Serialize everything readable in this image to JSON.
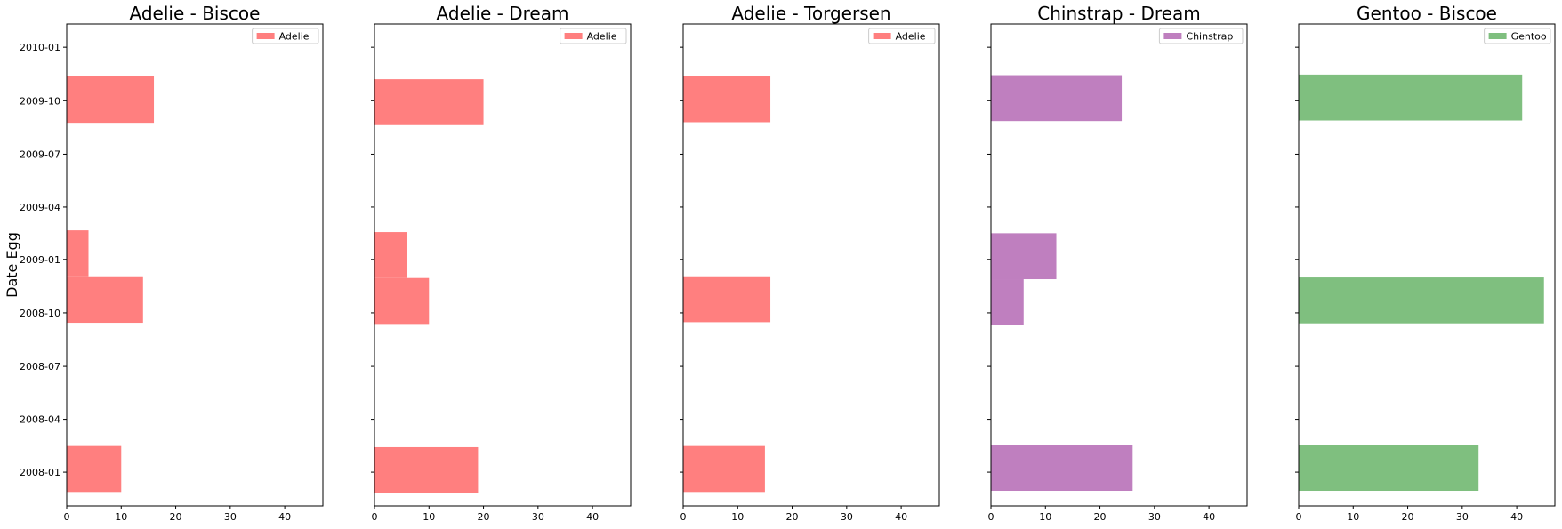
{
  "chart_data": [
    {
      "type": "bar",
      "orientation": "horizontal",
      "title": "Adelie - Biscoe",
      "xlabel": "",
      "ylabel": "Date Egg",
      "xlim": [
        0,
        47
      ],
      "xticks": [
        0,
        10,
        20,
        30,
        40
      ],
      "yrange": [
        "2007-11-04",
        "2010-02-10"
      ],
      "yticks": [
        "2008-01",
        "2008-04",
        "2008-07",
        "2008-10",
        "2009-01",
        "2009-04",
        "2009-07",
        "2009-10",
        "2010-01"
      ],
      "legend": {
        "location": "top-right",
        "entries": [
          "Adelie"
        ]
      },
      "color": "#ff7f7f",
      "bins": [
        {
          "start": "2007-11-28",
          "end": "2008-02-15",
          "value": 10
        },
        {
          "start": "2008-09-14",
          "end": "2008-12-03",
          "value": 14
        },
        {
          "start": "2008-12-03",
          "end": "2009-02-20",
          "value": 4
        },
        {
          "start": "2009-08-24",
          "end": "2009-11-12",
          "value": 16
        }
      ]
    },
    {
      "type": "bar",
      "orientation": "horizontal",
      "title": "Adelie - Dream",
      "xlabel": "",
      "ylabel": "",
      "xlim": [
        0,
        47
      ],
      "xticks": [
        0,
        10,
        20,
        30,
        40
      ],
      "yrange": [
        "2007-11-04",
        "2010-02-10"
      ],
      "yticks": [
        "2008-01",
        "2008-04",
        "2008-07",
        "2008-10",
        "2009-01",
        "2009-04",
        "2009-07",
        "2009-10",
        "2010-01"
      ],
      "legend": {
        "location": "top-right",
        "entries": [
          "Adelie"
        ]
      },
      "color": "#ff7f7f",
      "bins": [
        {
          "start": "2007-11-26",
          "end": "2008-02-13",
          "value": 19
        },
        {
          "start": "2008-09-12",
          "end": "2008-11-30",
          "value": 10
        },
        {
          "start": "2008-11-30",
          "end": "2009-02-17",
          "value": 6
        },
        {
          "start": "2009-08-20",
          "end": "2009-11-07",
          "value": 20
        }
      ]
    },
    {
      "type": "bar",
      "orientation": "horizontal",
      "title": "Adelie - Torgersen",
      "xlabel": "",
      "ylabel": "",
      "xlim": [
        0,
        47
      ],
      "xticks": [
        0,
        10,
        20,
        30,
        40
      ],
      "yrange": [
        "2007-11-04",
        "2010-02-10"
      ],
      "yticks": [
        "2008-01",
        "2008-04",
        "2008-07",
        "2008-10",
        "2009-01",
        "2009-04",
        "2009-07",
        "2009-10",
        "2010-01"
      ],
      "legend": {
        "location": "top-right",
        "entries": [
          "Adelie"
        ]
      },
      "color": "#ff7f7f",
      "bins": [
        {
          "start": "2007-11-28",
          "end": "2008-02-15",
          "value": 15
        },
        {
          "start": "2008-09-15",
          "end": "2008-12-03",
          "value": 16
        },
        {
          "start": "2009-08-25",
          "end": "2009-11-12",
          "value": 16
        }
      ]
    },
    {
      "type": "bar",
      "orientation": "horizontal",
      "title": "Chinstrap - Dream",
      "xlabel": "",
      "ylabel": "",
      "xlim": [
        0,
        47
      ],
      "xticks": [
        0,
        10,
        20,
        30,
        40
      ],
      "yrange": [
        "2007-11-04",
        "2010-02-10"
      ],
      "yticks": [
        "2008-01",
        "2008-04",
        "2008-07",
        "2008-10",
        "2009-01",
        "2009-04",
        "2009-07",
        "2009-10",
        "2010-01"
      ],
      "legend": {
        "location": "top-right",
        "entries": [
          "Chinstrap"
        ]
      },
      "color": "#bf7fbf",
      "bins": [
        {
          "start": "2007-11-30",
          "end": "2008-02-17",
          "value": 26
        },
        {
          "start": "2008-09-10",
          "end": "2008-11-28",
          "value": 6
        },
        {
          "start": "2008-11-28",
          "end": "2009-02-15",
          "value": 12
        },
        {
          "start": "2009-08-27",
          "end": "2009-11-14",
          "value": 24
        }
      ]
    },
    {
      "type": "bar",
      "orientation": "horizontal",
      "title": "Gentoo - Biscoe",
      "xlabel": "",
      "ylabel": "",
      "xlim": [
        0,
        47
      ],
      "xticks": [
        0,
        10,
        20,
        30,
        40
      ],
      "yrange": [
        "2007-11-04",
        "2010-02-10"
      ],
      "yticks": [
        "2008-01",
        "2008-04",
        "2008-07",
        "2008-10",
        "2009-01",
        "2009-04",
        "2009-07",
        "2009-10",
        "2010-01"
      ],
      "legend": {
        "location": "top-right",
        "entries": [
          "Gentoo"
        ]
      },
      "color": "#7fbf7f",
      "bins": [
        {
          "start": "2007-11-30",
          "end": "2008-02-17",
          "value": 33
        },
        {
          "start": "2008-09-13",
          "end": "2008-12-01",
          "value": 45
        },
        {
          "start": "2009-08-28",
          "end": "2009-11-15",
          "value": 41
        }
      ]
    }
  ]
}
